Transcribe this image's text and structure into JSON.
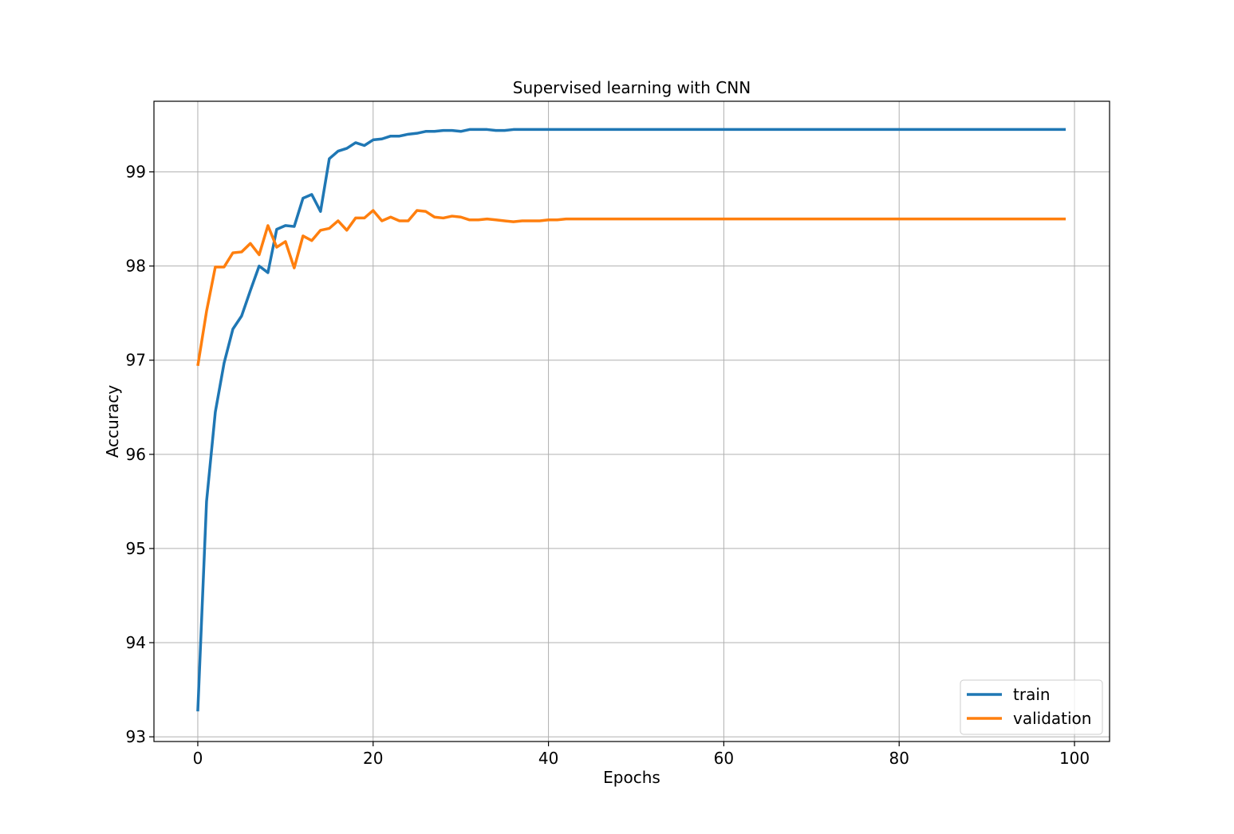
{
  "chart_data": {
    "type": "line",
    "title": "Supervised learning with CNN",
    "xlabel": "Epochs",
    "ylabel": "Accuracy",
    "xlim": [
      -5,
      104
    ],
    "ylim": [
      92.95,
      99.75
    ],
    "xticks": [
      0,
      20,
      40,
      60,
      80,
      100
    ],
    "yticks": [
      93,
      94,
      95,
      96,
      97,
      98,
      99
    ],
    "grid": true,
    "legend_position": "lower-right",
    "series": [
      {
        "name": "train",
        "color": "#1f77b4",
        "x": [
          0,
          1,
          2,
          3,
          4,
          5,
          6,
          7,
          8,
          9,
          10,
          11,
          12,
          13,
          14,
          15,
          16,
          17,
          18,
          19,
          20,
          21,
          22,
          23,
          24,
          25,
          26,
          27,
          28,
          29,
          30,
          31,
          32,
          33,
          34,
          35,
          36,
          37,
          38,
          39,
          40,
          41,
          42,
          43,
          99
        ],
        "values": [
          93.27,
          95.5,
          96.45,
          96.97,
          97.33,
          97.47,
          97.74,
          98.0,
          97.93,
          98.39,
          98.43,
          98.42,
          98.72,
          98.76,
          98.58,
          99.14,
          99.22,
          99.25,
          99.31,
          99.28,
          99.34,
          99.35,
          99.38,
          99.38,
          99.4,
          99.41,
          99.43,
          99.43,
          99.44,
          99.44,
          99.43,
          99.45,
          99.45,
          99.45,
          99.44,
          99.44,
          99.45,
          99.45,
          99.45,
          99.45,
          99.45,
          99.45,
          99.45,
          99.45,
          99.45
        ]
      },
      {
        "name": "validation",
        "color": "#ff7f0e",
        "x": [
          0,
          1,
          2,
          3,
          4,
          5,
          6,
          7,
          8,
          9,
          10,
          11,
          12,
          13,
          14,
          15,
          16,
          17,
          18,
          19,
          20,
          21,
          22,
          23,
          24,
          25,
          26,
          27,
          28,
          29,
          30,
          31,
          32,
          33,
          34,
          35,
          36,
          37,
          38,
          39,
          40,
          41,
          42,
          99
        ],
        "values": [
          96.94,
          97.52,
          97.99,
          97.99,
          98.14,
          98.15,
          98.24,
          98.12,
          98.43,
          98.2,
          98.26,
          97.98,
          98.32,
          98.27,
          98.38,
          98.4,
          98.48,
          98.38,
          98.51,
          98.51,
          98.59,
          98.48,
          98.52,
          98.48,
          98.48,
          98.59,
          98.58,
          98.52,
          98.51,
          98.53,
          98.52,
          98.49,
          98.49,
          98.5,
          98.49,
          98.48,
          98.47,
          98.48,
          98.48,
          98.48,
          98.49,
          98.49,
          98.5,
          98.5
        ]
      }
    ]
  }
}
